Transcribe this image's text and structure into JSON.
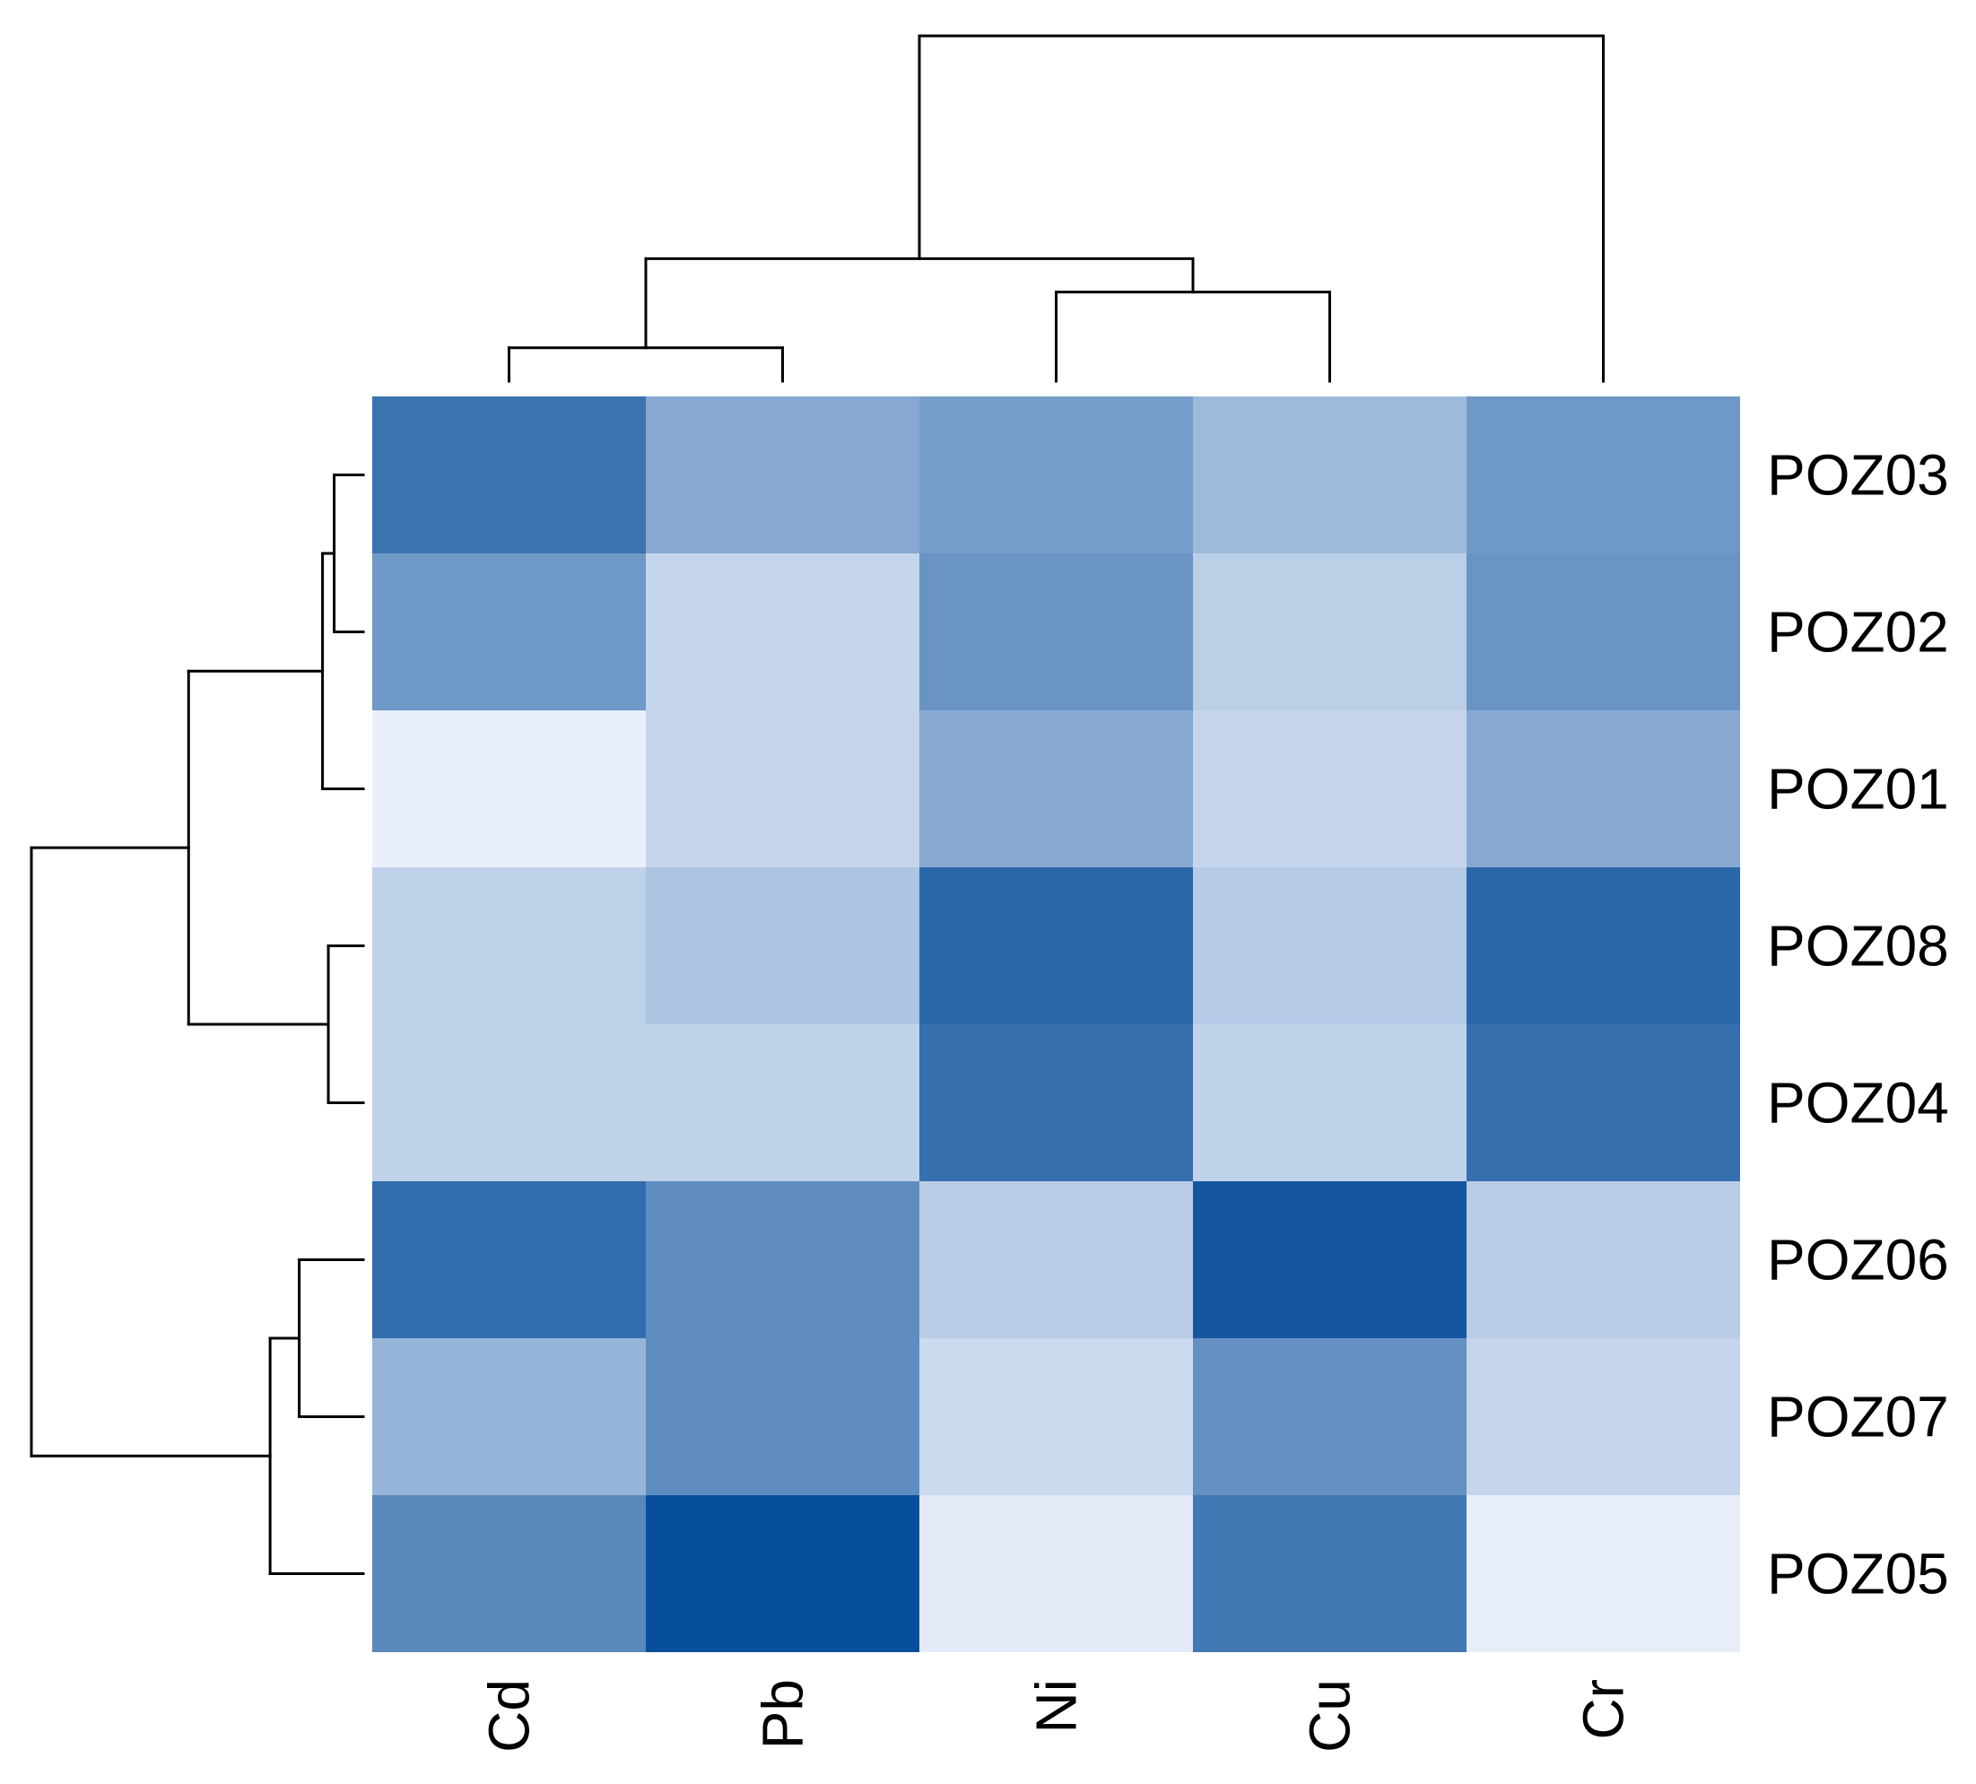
{
  "chart_data": {
    "type": "heatmap",
    "title": "",
    "xlabel": "",
    "ylabel": "",
    "columns": [
      "Cd",
      "Pb",
      "Ni",
      "Cu",
      "Cr"
    ],
    "rows": [
      "POZ03",
      "POZ02",
      "POZ01",
      "POZ08",
      "POZ04",
      "POZ06",
      "POZ07",
      "POZ05"
    ],
    "values": [
      [
        0.78,
        0.45,
        0.52,
        0.35,
        0.55
      ],
      [
        0.55,
        0.18,
        0.58,
        0.22,
        0.58
      ],
      [
        0.02,
        0.18,
        0.45,
        0.18,
        0.45
      ],
      [
        0.2,
        0.28,
        0.85,
        0.25,
        0.85
      ],
      [
        0.2,
        0.2,
        0.8,
        0.2,
        0.8
      ],
      [
        0.82,
        0.62,
        0.23,
        0.95,
        0.23
      ],
      [
        0.38,
        0.62,
        0.15,
        0.6,
        0.18
      ],
      [
        0.65,
        1.0,
        0.05,
        0.75,
        0.03
      ]
    ],
    "color_scale": {
      "low": "#eef3fd",
      "high": "#084f9b",
      "name": "Blues"
    },
    "column_dendrogram": [
      {
        "left": "Cd",
        "right": "Pb",
        "height": 0.06
      },
      {
        "left": "Ni",
        "right": "Cu",
        "height": 0.16
      },
      {
        "left": "Cd+Pb",
        "right": "Ni+Cu",
        "height": 0.22
      },
      {
        "left": "Cd+Pb+Ni+Cu",
        "right": "Cr",
        "height": 0.62
      }
    ],
    "row_dendrogram": [
      {
        "left": "POZ03",
        "right": "POZ02",
        "height": 0.05
      },
      {
        "left": "POZ03+POZ02",
        "right": "POZ01",
        "height": 0.07
      },
      {
        "left": "POZ08",
        "right": "POZ04",
        "height": 0.06
      },
      {
        "left": "POZ03+POZ02+POZ01",
        "right": "POZ08+POZ04",
        "height": 0.3
      },
      {
        "left": "POZ06",
        "right": "POZ07",
        "height": 0.11
      },
      {
        "left": "POZ06+POZ07",
        "right": "POZ05",
        "height": 0.16
      },
      {
        "left": "POZ03+POZ02+POZ01+POZ08+POZ04",
        "right": "POZ06+POZ07+POZ05",
        "height": 0.57
      }
    ]
  }
}
